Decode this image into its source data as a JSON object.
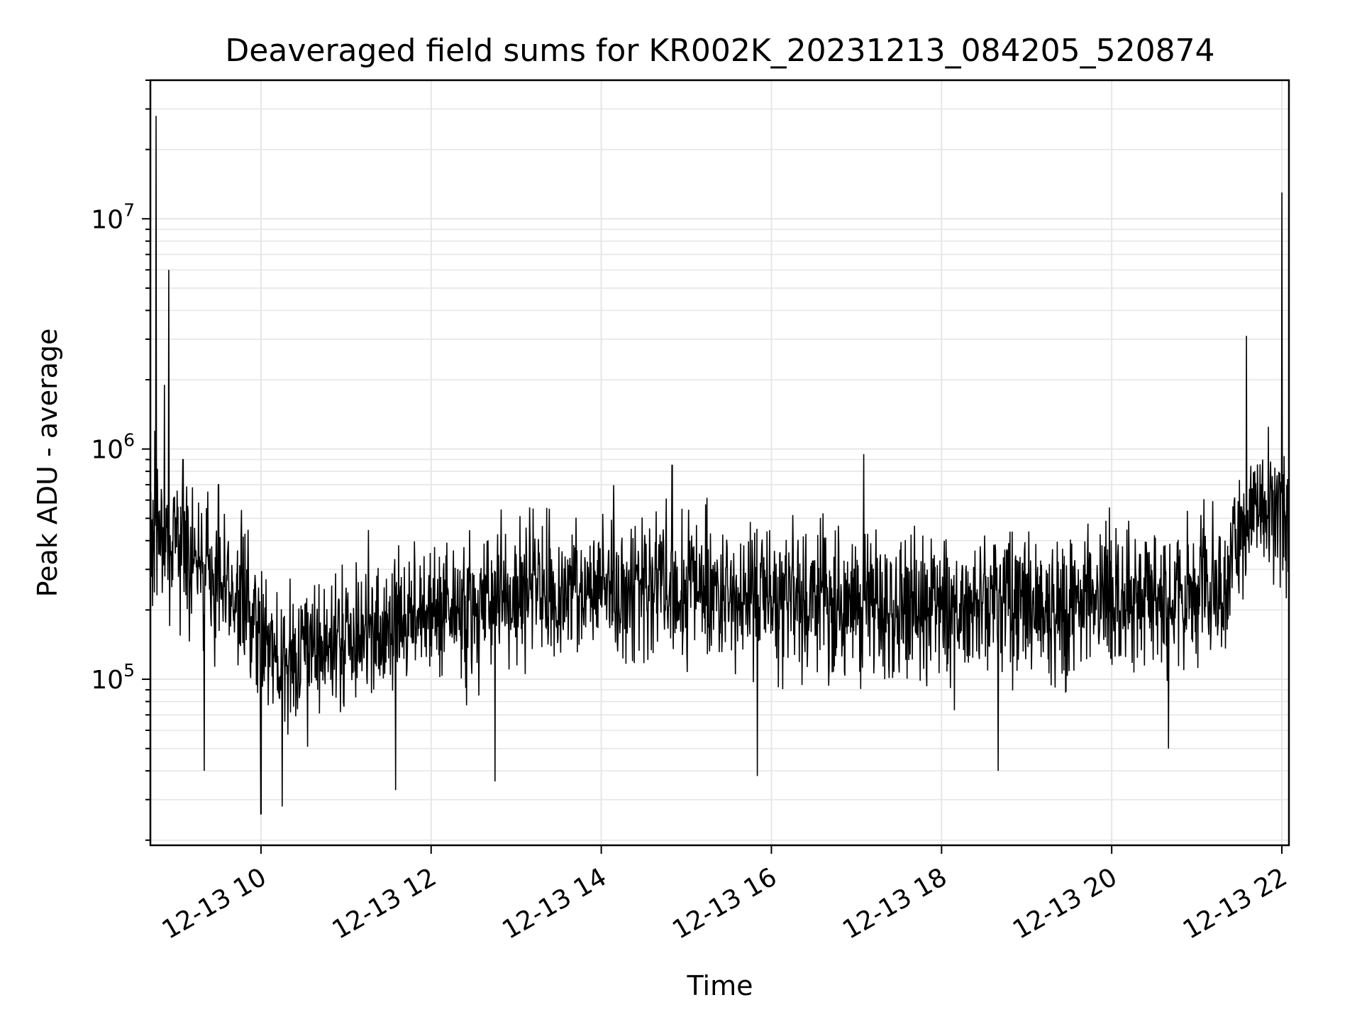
{
  "chart_data": {
    "type": "line",
    "title": "Deaveraged field sums for KR002K_20231213_084205_520874",
    "xlabel": "Time",
    "ylabel": "Peak ADU - average",
    "yscale": "log",
    "grid": true,
    "legend": "none",
    "line_color": "#000000",
    "grid_color": "#e6e6e6",
    "xlim": [
      "2023-12-13 08:42",
      "2023-12-13 22:05"
    ],
    "ylim": [
      19000,
      40000000
    ],
    "x_ticks": [
      {
        "time": "2023-12-13 10:00",
        "label": "12-13 10"
      },
      {
        "time": "2023-12-13 12:00",
        "label": "12-13 12"
      },
      {
        "time": "2023-12-13 14:00",
        "label": "12-13 14"
      },
      {
        "time": "2023-12-13 16:00",
        "label": "12-13 16"
      },
      {
        "time": "2023-12-13 18:00",
        "label": "12-13 18"
      },
      {
        "time": "2023-12-13 20:00",
        "label": "12-13 20"
      },
      {
        "time": "2023-12-13 22:00",
        "label": "12-13 22"
      }
    ],
    "y_ticks": [
      {
        "value": 100000,
        "base": "10",
        "exp": "5"
      },
      {
        "value": 1000000,
        "base": "10",
        "exp": "6"
      },
      {
        "value": 10000000,
        "base": "10",
        "exp": "7"
      }
    ],
    "series": [
      {
        "name": "",
        "points": [
          [
            "2023-12-13 08:42",
            420000
          ],
          [
            "2023-12-13 08:45",
            1200000
          ],
          [
            "2023-12-13 08:46",
            28000000
          ],
          [
            "2023-12-13 08:48",
            350000
          ],
          [
            "2023-12-13 08:52",
            1900000
          ],
          [
            "2023-12-13 08:55",
            6000000
          ],
          [
            "2023-12-13 08:58",
            500000
          ],
          [
            "2023-12-13 09:05",
            900000
          ],
          [
            "2023-12-13 09:15",
            250000
          ],
          [
            "2023-12-13 09:20",
            40000
          ],
          [
            "2023-12-13 09:30",
            700000
          ],
          [
            "2023-12-13 09:50",
            300000
          ],
          [
            "2023-12-13 10:00",
            26000
          ],
          [
            "2023-12-13 10:15",
            28000
          ],
          [
            "2023-12-13 10:40",
            90000
          ],
          [
            "2023-12-13 11:00",
            250000
          ],
          [
            "2023-12-13 11:35",
            33000
          ],
          [
            "2023-12-13 12:00",
            250000
          ],
          [
            "2023-12-13 12:45",
            36000
          ],
          [
            "2023-12-13 13:00",
            350000
          ],
          [
            "2023-12-13 14:00",
            280000
          ],
          [
            "2023-12-13 14:50",
            850000
          ],
          [
            "2023-12-13 15:50",
            38000
          ],
          [
            "2023-12-13 16:00",
            230000
          ],
          [
            "2023-12-13 17:00",
            200000
          ],
          [
            "2023-12-13 17:05",
            950000
          ],
          [
            "2023-12-13 17:20",
            100000
          ],
          [
            "2023-12-13 18:00",
            200000
          ],
          [
            "2023-12-13 18:40",
            40000
          ],
          [
            "2023-12-13 19:00",
            250000
          ],
          [
            "2023-12-13 20:00",
            230000
          ],
          [
            "2023-12-13 20:40",
            50000
          ],
          [
            "2023-12-13 21:00",
            250000
          ],
          [
            "2023-12-13 21:20",
            400000
          ],
          [
            "2023-12-13 21:35",
            3100000
          ],
          [
            "2023-12-13 21:50",
            500000
          ],
          [
            "2023-12-13 22:00",
            13000000
          ],
          [
            "2023-12-13 22:05",
            700000
          ]
        ]
      }
    ]
  }
}
